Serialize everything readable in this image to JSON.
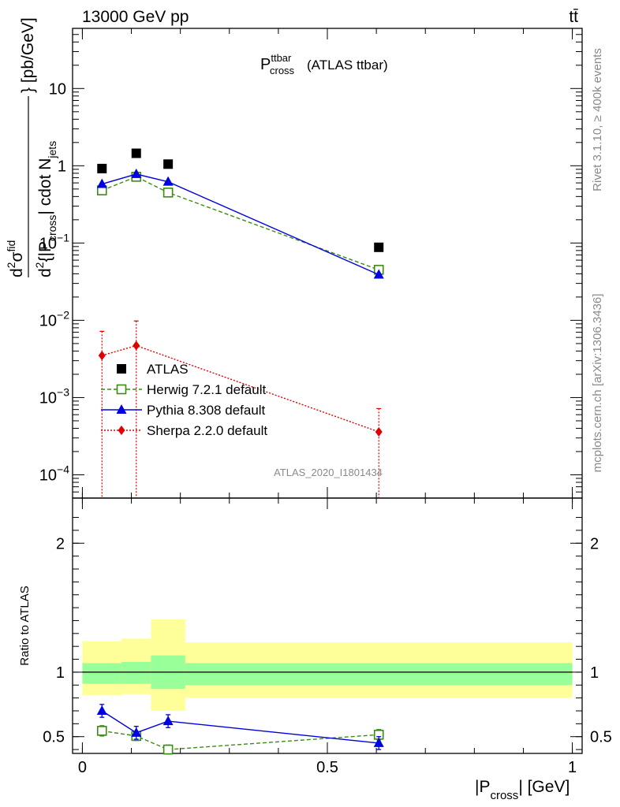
{
  "header": {
    "energy_label": "13000 GeV pp",
    "process_label": "tt̄"
  },
  "side_text": {
    "rivet_version": "Rivet 3.1.10, ≥ 400k events",
    "mcplots_ref": "mcplots.cern.ch [arXiv:1306.3436]"
  },
  "watermark": "ATLAS_2020_I1801434",
  "colors": {
    "atlas": "#000000",
    "herwig": "#3a8c10",
    "pythia": "#0000e0",
    "sherpa": "#e00000",
    "band_inner": "#99ff99",
    "band_outer": "#ffff99"
  },
  "chart_data": [
    {
      "type": "scatter",
      "panel": "main",
      "log_y": true,
      "title_main": "P",
      "title_sup": "ttbar",
      "title_sub": "cross",
      "title_suffix": "(ATLAS ttbar)",
      "ylabel": "d²σ^{fid} / d²{|P_cross| cdot N_jets} [pb/GeV]",
      "ylabel_parts": {
        "numerator": "d",
        "numerator_sup": "2",
        "numerator_sigma": "σ",
        "numerator_sigma_sup": "fid",
        "denominator": "d",
        "denominator_sup": "2",
        "denominator_text": "{|P",
        "denominator_sub": "cross",
        "denominator_text2": "| cdot N",
        "denominator_sub2": "jets",
        "closing": "} [pb/GeV]"
      },
      "xlim": [
        -0.02,
        1.02
      ],
      "ylim": [
        5e-05,
        60
      ],
      "y_ticks": [
        {
          "v": 0.0001,
          "mant": "10",
          "exp": "−4"
        },
        {
          "v": 0.001,
          "mant": "10",
          "exp": "−3"
        },
        {
          "v": 0.01,
          "mant": "10",
          "exp": "−2"
        },
        {
          "v": 0.1,
          "mant": "10",
          "exp": "−1"
        },
        {
          "v": 1,
          "mant": "1",
          "exp": ""
        },
        {
          "v": 10,
          "mant": "10",
          "exp": ""
        }
      ],
      "legend_position": "middle-left",
      "series": [
        {
          "name": "ATLAS",
          "key": "atlas",
          "marker": "square-filled",
          "line": "none",
          "x": [
            0.04,
            0.11,
            0.175,
            0.605
          ],
          "y": [
            0.92,
            1.45,
            1.05,
            0.088
          ]
        },
        {
          "name": "Herwig 7.2.1 default",
          "key": "herwig",
          "marker": "square-open",
          "line": "dashed",
          "x": [
            0.04,
            0.11,
            0.175,
            0.605
          ],
          "y": [
            0.48,
            0.72,
            0.45,
            0.045
          ]
        },
        {
          "name": "Pythia 8.308 default",
          "key": "pythia",
          "marker": "triangle",
          "line": "solid",
          "x": [
            0.04,
            0.11,
            0.175,
            0.605
          ],
          "y": [
            0.58,
            0.78,
            0.62,
            0.039
          ]
        },
        {
          "name": "Sherpa 2.2.0 default",
          "key": "sherpa",
          "marker": "diamond",
          "line": "dotted",
          "x": [
            0.04,
            0.11,
            0.605
          ],
          "y": [
            0.0035,
            0.0047,
            0.00036
          ],
          "y_err_up": [
            0.0072,
            0.0098,
            0.00072
          ],
          "y_err_down": [
            5e-05,
            5e-05,
            5e-05
          ]
        }
      ]
    },
    {
      "type": "line",
      "panel": "ratio",
      "ylabel": "Ratio to ATLAS",
      "xlabel_main": "|P",
      "xlabel_sub": "cross",
      "xlabel_suffix": "| [GeV]",
      "xlim": [
        -0.02,
        1.02
      ],
      "ylim": [
        0.37,
        2.35
      ],
      "x_ticks": [
        {
          "v": 0,
          "label": "0"
        },
        {
          "v": 0.5,
          "label": "0.5"
        },
        {
          "v": 1,
          "label": "1"
        }
      ],
      "y_ticks": [
        {
          "v": 0.5,
          "label": "0.5"
        },
        {
          "v": 1,
          "label": "1"
        },
        {
          "v": 2,
          "label": "2"
        }
      ],
      "bins": [
        [
          0.0,
          0.08
        ],
        [
          0.08,
          0.14
        ],
        [
          0.14,
          0.21
        ],
        [
          0.21,
          1.0
        ]
      ],
      "band_inner": [
        [
          0.91,
          1.07
        ],
        [
          0.91,
          1.08
        ],
        [
          0.87,
          1.13
        ],
        [
          0.9,
          1.07
        ]
      ],
      "band_outer": [
        [
          0.82,
          1.24
        ],
        [
          0.83,
          1.26
        ],
        [
          0.7,
          1.41
        ],
        [
          0.8,
          1.23
        ]
      ],
      "reference": 1,
      "series": [
        {
          "name": "Herwig 7.2.1 default",
          "key": "herwig",
          "marker": "square-open",
          "line": "dashed",
          "x": [
            0.04,
            0.11,
            0.175,
            0.605
          ],
          "y": [
            0.545,
            0.505,
            0.4,
            0.515
          ],
          "y_err": [
            0.04,
            0.035,
            0.035,
            0.04
          ]
        },
        {
          "name": "Pythia 8.308 default",
          "key": "pythia",
          "marker": "triangle",
          "line": "solid",
          "x": [
            0.04,
            0.11,
            0.175,
            0.605
          ],
          "y": [
            0.7,
            0.53,
            0.62,
            0.45
          ],
          "y_err": [
            0.05,
            0.05,
            0.05,
            0.05
          ]
        }
      ]
    }
  ]
}
